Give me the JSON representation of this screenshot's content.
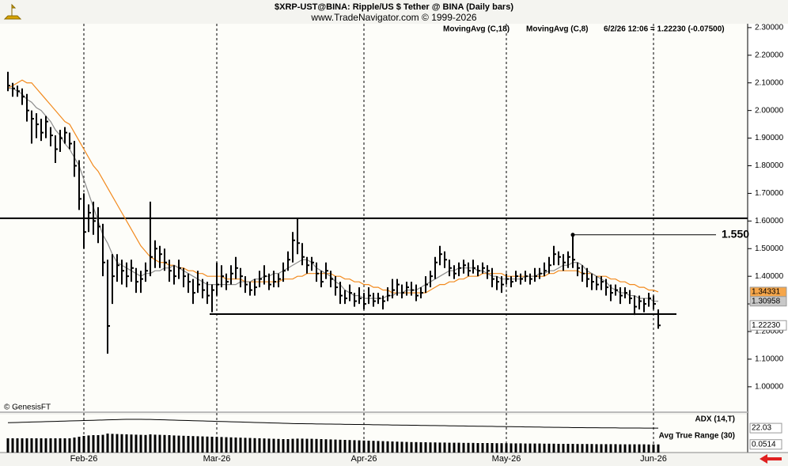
{
  "chart_data": {
    "type": "ohlc",
    "title": "$XRP-UST@BINA:  Ripple/US $ Tether @ BINA  (Daily bars)",
    "subtitle": "www.TradeNavigator.com © 1999-2026",
    "quote": "6/2/26 12:06 = 1.22230 (-0.07500)",
    "watermark": "© GenesisFT",
    "categories": [
      null,
      null,
      null,
      null,
      null,
      null,
      null,
      null,
      null,
      null,
      null,
      null,
      null,
      null,
      null,
      null,
      "Feb-26",
      null,
      null,
      null,
      null,
      null,
      null,
      null,
      null,
      null,
      null,
      null,
      null,
      null,
      null,
      null,
      null,
      null,
      null,
      null,
      null,
      null,
      null,
      null,
      null,
      null,
      null,
      null,
      "Mar-26",
      null,
      null,
      null,
      null,
      null,
      null,
      null,
      null,
      null,
      null,
      null,
      null,
      null,
      null,
      null,
      null,
      null,
      null,
      null,
      null,
      null,
      null,
      null,
      null,
      null,
      null,
      null,
      null,
      null,
      null,
      "Apr-26",
      null,
      null,
      null,
      null,
      null,
      null,
      null,
      null,
      null,
      null,
      null,
      null,
      null,
      null,
      null,
      null,
      null,
      null,
      null,
      null,
      null,
      null,
      null,
      null,
      null,
      null,
      null,
      null,
      null,
      "May-26",
      null,
      null,
      null,
      null,
      null,
      null,
      null,
      null,
      null,
      null,
      null,
      null,
      null,
      null,
      null,
      null,
      null,
      null,
      null,
      null,
      null,
      null,
      null,
      null,
      null,
      null,
      null,
      null,
      null,
      null,
      "Jun-26",
      null
    ],
    "high": [
      2.14,
      2.1,
      2.09,
      2.08,
      2.06,
      2.0,
      1.99,
      1.97,
      1.98,
      1.94,
      1.91,
      1.93,
      1.94,
      1.92,
      1.89,
      1.82,
      1.7,
      1.66,
      1.67,
      1.65,
      1.59,
      1.46,
      1.48,
      1.48,
      1.46,
      1.45,
      1.46,
      1.43,
      1.42,
      1.45,
      1.67,
      1.53,
      1.51,
      1.5,
      1.46,
      1.44,
      1.46,
      1.43,
      1.41,
      1.39,
      1.42,
      1.39,
      1.38,
      1.37,
      1.45,
      1.44,
      1.41,
      1.44,
      1.47,
      1.43,
      1.4,
      1.38,
      1.39,
      1.42,
      1.44,
      1.41,
      1.42,
      1.41,
      1.45,
      1.49,
      1.56,
      1.61,
      1.52,
      1.47,
      1.47,
      1.45,
      1.42,
      1.45,
      1.42,
      1.4,
      1.38,
      1.35,
      1.37,
      1.34,
      1.36,
      1.34,
      1.36,
      1.34,
      1.34,
      1.33,
      1.36,
      1.39,
      1.39,
      1.37,
      1.38,
      1.38,
      1.37,
      1.36,
      1.4,
      1.42,
      1.47,
      1.51,
      1.49,
      1.46,
      1.44,
      1.45,
      1.46,
      1.45,
      1.46,
      1.44,
      1.45,
      1.44,
      1.43,
      1.4,
      1.4,
      1.41,
      1.4,
      1.42,
      1.41,
      1.42,
      1.41,
      1.43,
      1.43,
      1.45,
      1.47,
      1.51,
      1.49,
      1.48,
      1.49,
      1.55,
      1.45,
      1.44,
      1.43,
      1.41,
      1.4,
      1.4,
      1.39,
      1.37,
      1.37,
      1.36,
      1.36,
      1.35,
      1.33,
      1.33,
      1.32,
      1.34,
      1.33,
      1.28
    ],
    "low": [
      2.07,
      2.05,
      2.05,
      2.02,
      1.96,
      1.88,
      1.9,
      1.89,
      1.9,
      1.87,
      1.81,
      1.85,
      1.88,
      1.86,
      1.76,
      1.64,
      1.5,
      1.56,
      1.55,
      1.52,
      1.4,
      1.12,
      1.3,
      1.38,
      1.37,
      1.36,
      1.38,
      1.34,
      1.34,
      1.38,
      1.4,
      1.43,
      1.43,
      1.42,
      1.38,
      1.37,
      1.39,
      1.36,
      1.34,
      1.3,
      1.34,
      1.32,
      1.3,
      1.27,
      1.33,
      1.36,
      1.35,
      1.37,
      1.39,
      1.36,
      1.34,
      1.33,
      1.33,
      1.36,
      1.37,
      1.35,
      1.36,
      1.36,
      1.38,
      1.42,
      1.45,
      1.48,
      1.44,
      1.41,
      1.42,
      1.38,
      1.36,
      1.39,
      1.36,
      1.33,
      1.3,
      1.3,
      1.31,
      1.29,
      1.3,
      1.28,
      1.3,
      1.29,
      1.3,
      1.28,
      1.31,
      1.32,
      1.33,
      1.32,
      1.33,
      1.33,
      1.31,
      1.32,
      1.34,
      1.36,
      1.39,
      1.44,
      1.43,
      1.4,
      1.39,
      1.4,
      1.41,
      1.4,
      1.41,
      1.4,
      1.41,
      1.39,
      1.36,
      1.35,
      1.34,
      1.37,
      1.36,
      1.38,
      1.37,
      1.38,
      1.37,
      1.38,
      1.39,
      1.4,
      1.41,
      1.44,
      1.44,
      1.42,
      1.43,
      1.43,
      1.4,
      1.38,
      1.36,
      1.35,
      1.35,
      1.35,
      1.33,
      1.31,
      1.33,
      1.3,
      1.32,
      1.3,
      1.26,
      1.28,
      1.27,
      1.29,
      1.28,
      1.21
    ],
    "close": [
      2.09,
      2.08,
      2.07,
      2.05,
      2.0,
      1.97,
      1.95,
      1.92,
      1.96,
      1.91,
      1.86,
      1.9,
      1.92,
      1.88,
      1.8,
      1.68,
      1.56,
      1.63,
      1.6,
      1.58,
      1.45,
      1.22,
      1.4,
      1.44,
      1.42,
      1.4,
      1.43,
      1.38,
      1.39,
      1.42,
      1.47,
      1.5,
      1.48,
      1.45,
      1.42,
      1.4,
      1.43,
      1.4,
      1.38,
      1.34,
      1.37,
      1.35,
      1.33,
      1.35,
      1.37,
      1.4,
      1.38,
      1.41,
      1.43,
      1.4,
      1.37,
      1.35,
      1.36,
      1.39,
      1.4,
      1.37,
      1.38,
      1.39,
      1.42,
      1.46,
      1.53,
      1.52,
      1.47,
      1.44,
      1.45,
      1.41,
      1.38,
      1.42,
      1.39,
      1.36,
      1.33,
      1.32,
      1.34,
      1.31,
      1.32,
      1.3,
      1.33,
      1.31,
      1.32,
      1.31,
      1.33,
      1.35,
      1.37,
      1.34,
      1.36,
      1.35,
      1.33,
      1.34,
      1.37,
      1.4,
      1.45,
      1.48,
      1.46,
      1.43,
      1.41,
      1.43,
      1.44,
      1.42,
      1.43,
      1.42,
      1.43,
      1.42,
      1.39,
      1.38,
      1.37,
      1.39,
      1.38,
      1.4,
      1.39,
      1.4,
      1.39,
      1.4,
      1.41,
      1.42,
      1.44,
      1.48,
      1.47,
      1.45,
      1.47,
      1.46,
      1.43,
      1.41,
      1.39,
      1.38,
      1.37,
      1.38,
      1.36,
      1.34,
      1.35,
      1.33,
      1.34,
      1.32,
      1.29,
      1.31,
      1.3,
      1.32,
      1.3,
      1.2223
    ],
    "bar_color": "#000000",
    "overlays": [
      {
        "name": "MovingAvg (C,18)",
        "color": "#f28a1e",
        "values": [
          2.08,
          2.09,
          2.1,
          2.11,
          2.1,
          2.1,
          2.08,
          2.06,
          2.04,
          2.02,
          2.0,
          1.98,
          1.96,
          1.95,
          1.92,
          1.89,
          1.86,
          1.83,
          1.8,
          1.78,
          1.75,
          1.72,
          1.69,
          1.66,
          1.63,
          1.6,
          1.57,
          1.54,
          1.51,
          1.49,
          1.47,
          1.46,
          1.45,
          1.45,
          1.44,
          1.44,
          1.43,
          1.43,
          1.42,
          1.42,
          1.41,
          1.41,
          1.4,
          1.4,
          1.4,
          1.4,
          1.39,
          1.39,
          1.39,
          1.39,
          1.38,
          1.38,
          1.38,
          1.38,
          1.38,
          1.38,
          1.38,
          1.38,
          1.39,
          1.39,
          1.39,
          1.4,
          1.4,
          1.41,
          1.41,
          1.41,
          1.41,
          1.41,
          1.41,
          1.4,
          1.4,
          1.39,
          1.39,
          1.38,
          1.38,
          1.37,
          1.37,
          1.36,
          1.36,
          1.35,
          1.35,
          1.34,
          1.34,
          1.34,
          1.34,
          1.34,
          1.34,
          1.34,
          1.34,
          1.35,
          1.36,
          1.37,
          1.37,
          1.38,
          1.38,
          1.39,
          1.39,
          1.4,
          1.4,
          1.4,
          1.41,
          1.41,
          1.41,
          1.41,
          1.41,
          1.4,
          1.4,
          1.4,
          1.4,
          1.4,
          1.4,
          1.4,
          1.4,
          1.4,
          1.41,
          1.41,
          1.42,
          1.42,
          1.42,
          1.42,
          1.42,
          1.41,
          1.41,
          1.41,
          1.4,
          1.4,
          1.4,
          1.39,
          1.39,
          1.38,
          1.38,
          1.37,
          1.37,
          1.36,
          1.36,
          1.35,
          1.35,
          1.34331
        ]
      },
      {
        "name": "MovingAvg (C,8)",
        "color": "#8c8c8c",
        "values": [
          2.08,
          2.08,
          2.07,
          2.06,
          2.04,
          2.03,
          2.01,
          2.0,
          1.98,
          1.96,
          1.93,
          1.91,
          1.88,
          1.86,
          1.83,
          1.8,
          1.75,
          1.7,
          1.65,
          1.6,
          1.55,
          1.52,
          1.48,
          1.45,
          1.44,
          1.43,
          1.42,
          1.41,
          1.4,
          1.41,
          1.41,
          1.42,
          1.42,
          1.43,
          1.43,
          1.44,
          1.43,
          1.42,
          1.41,
          1.4,
          1.39,
          1.38,
          1.37,
          1.37,
          1.37,
          1.37,
          1.37,
          1.37,
          1.37,
          1.38,
          1.38,
          1.38,
          1.39,
          1.39,
          1.4,
          1.4,
          1.41,
          1.41,
          1.42,
          1.43,
          1.44,
          1.45,
          1.46,
          1.46,
          1.45,
          1.43,
          1.42,
          1.41,
          1.4,
          1.38,
          1.37,
          1.35,
          1.34,
          1.33,
          1.33,
          1.32,
          1.32,
          1.32,
          1.32,
          1.32,
          1.33,
          1.33,
          1.34,
          1.34,
          1.35,
          1.35,
          1.35,
          1.36,
          1.37,
          1.38,
          1.39,
          1.4,
          1.41,
          1.42,
          1.42,
          1.43,
          1.43,
          1.43,
          1.43,
          1.42,
          1.42,
          1.41,
          1.4,
          1.4,
          1.39,
          1.39,
          1.39,
          1.39,
          1.39,
          1.4,
          1.4,
          1.4,
          1.41,
          1.41,
          1.42,
          1.42,
          1.43,
          1.44,
          1.44,
          1.45,
          1.45,
          1.44,
          1.42,
          1.41,
          1.4,
          1.39,
          1.38,
          1.36,
          1.35,
          1.34,
          1.34,
          1.33,
          1.33,
          1.32,
          1.32,
          1.32,
          1.31,
          1.30958
        ]
      }
    ],
    "price_tag": {
      "value": 1.2223,
      "label": "1.22230"
    },
    "annotations": [
      {
        "value": 1.55,
        "label": "1.550"
      }
    ],
    "hlines": [
      1.61,
      1.263
    ],
    "ylim": [
      0.908,
      2.314
    ],
    "yticks": [
      {
        "value": 1.0,
        "label": "1.00000"
      },
      {
        "value": 1.1,
        "label": "1.10000"
      },
      {
        "value": 1.2,
        "label": "1.20000"
      },
      {
        "value": 1.3,
        "label": "1.30000"
      },
      {
        "value": 1.4,
        "label": "1.40000"
      },
      {
        "value": 1.5,
        "label": "1.50000"
      },
      {
        "value": 1.6,
        "label": "1.60000"
      },
      {
        "value": 1.7,
        "label": "1.70000"
      },
      {
        "value": 1.8,
        "label": "1.80000"
      },
      {
        "value": 1.9,
        "label": "1.90000"
      },
      {
        "value": 2.0,
        "label": "2.00000"
      },
      {
        "value": 2.1,
        "label": "2.10000"
      },
      {
        "value": 2.2,
        "label": "2.20000"
      },
      {
        "value": 2.3,
        "label": "2.30000"
      }
    ],
    "indicators": [
      {
        "name": "ADX (14,T)",
        "type": "line",
        "color": "#000000",
        "ylim": [
          18,
          32
        ],
        "values": [
          26.0,
          26.1,
          26.2,
          26.3,
          26.4,
          26.5,
          26.6,
          26.7,
          26.8,
          26.9,
          27.0,
          27.1,
          27.2,
          27.3,
          27.4,
          27.5,
          27.6,
          27.7,
          27.8,
          27.9,
          28.0,
          28.1,
          28.2,
          28.3,
          28.4,
          28.5,
          28.5,
          28.5,
          28.5,
          28.4,
          28.4,
          28.3,
          28.2,
          28.1,
          28.0,
          27.9,
          27.8,
          27.7,
          27.6,
          27.5,
          27.4,
          27.3,
          27.2,
          27.1,
          27.0,
          26.9,
          26.8,
          26.7,
          26.6,
          26.5,
          26.4,
          26.3,
          26.2,
          26.1,
          26.0,
          25.9,
          25.8,
          25.7,
          25.6,
          25.5,
          25.4,
          25.3,
          25.3,
          25.2,
          25.2,
          25.1,
          25.1,
          25.0,
          25.0,
          24.9,
          24.9,
          24.8,
          24.8,
          24.7,
          24.7,
          24.6,
          24.6,
          24.5,
          24.5,
          24.4,
          24.4,
          24.3,
          24.3,
          24.2,
          24.2,
          24.1,
          24.1,
          24.0,
          24.0,
          23.9,
          23.9,
          23.8,
          23.8,
          23.7,
          23.7,
          23.6,
          23.6,
          23.5,
          23.5,
          23.4,
          23.4,
          23.3,
          23.3,
          23.2,
          23.2,
          23.1,
          23.1,
          23.0,
          23.0,
          22.9,
          22.9,
          22.8,
          22.8,
          22.7,
          22.7,
          22.6,
          22.6,
          22.5,
          22.5,
          22.4,
          22.4,
          22.4,
          22.3,
          22.3,
          22.3,
          22.2,
          22.2,
          22.2,
          22.2,
          22.1,
          22.1,
          22.1,
          22.1,
          22.1,
          22.0,
          22.0,
          22.0,
          22.03
        ]
      },
      {
        "name": "Avg True Range (30)",
        "type": "bar",
        "color": "#000000",
        "ylim": [
          0,
          0.12
        ],
        "values": [
          0.09,
          0.09,
          0.09,
          0.09,
          0.09,
          0.09,
          0.09,
          0.09,
          0.09,
          0.09,
          0.09,
          0.09,
          0.09,
          0.09,
          0.095,
          0.1,
          0.105,
          0.108,
          0.11,
          0.11,
          0.112,
          0.12,
          0.118,
          0.117,
          0.116,
          0.115,
          0.114,
          0.113,
          0.112,
          0.111,
          0.115,
          0.113,
          0.112,
          0.111,
          0.11,
          0.108,
          0.107,
          0.106,
          0.105,
          0.104,
          0.103,
          0.102,
          0.101,
          0.1,
          0.099,
          0.098,
          0.097,
          0.096,
          0.095,
          0.094,
          0.093,
          0.092,
          0.091,
          0.09,
          0.089,
          0.088,
          0.087,
          0.086,
          0.085,
          0.085,
          0.087,
          0.088,
          0.088,
          0.087,
          0.087,
          0.086,
          0.085,
          0.084,
          0.083,
          0.082,
          0.081,
          0.08,
          0.079,
          0.078,
          0.077,
          0.076,
          0.075,
          0.074,
          0.073,
          0.072,
          0.071,
          0.07,
          0.069,
          0.068,
          0.067,
          0.066,
          0.066,
          0.065,
          0.065,
          0.064,
          0.064,
          0.063,
          0.063,
          0.062,
          0.062,
          0.062,
          0.061,
          0.061,
          0.061,
          0.06,
          0.06,
          0.06,
          0.06,
          0.059,
          0.059,
          0.059,
          0.058,
          0.058,
          0.058,
          0.057,
          0.057,
          0.057,
          0.057,
          0.056,
          0.056,
          0.056,
          0.055,
          0.055,
          0.055,
          0.055,
          0.054,
          0.054,
          0.054,
          0.054,
          0.053,
          0.053,
          0.053,
          0.053,
          0.053,
          0.052,
          0.052,
          0.052,
          0.052,
          0.052,
          0.052,
          0.051,
          0.051,
          0.0514
        ]
      }
    ]
  }
}
